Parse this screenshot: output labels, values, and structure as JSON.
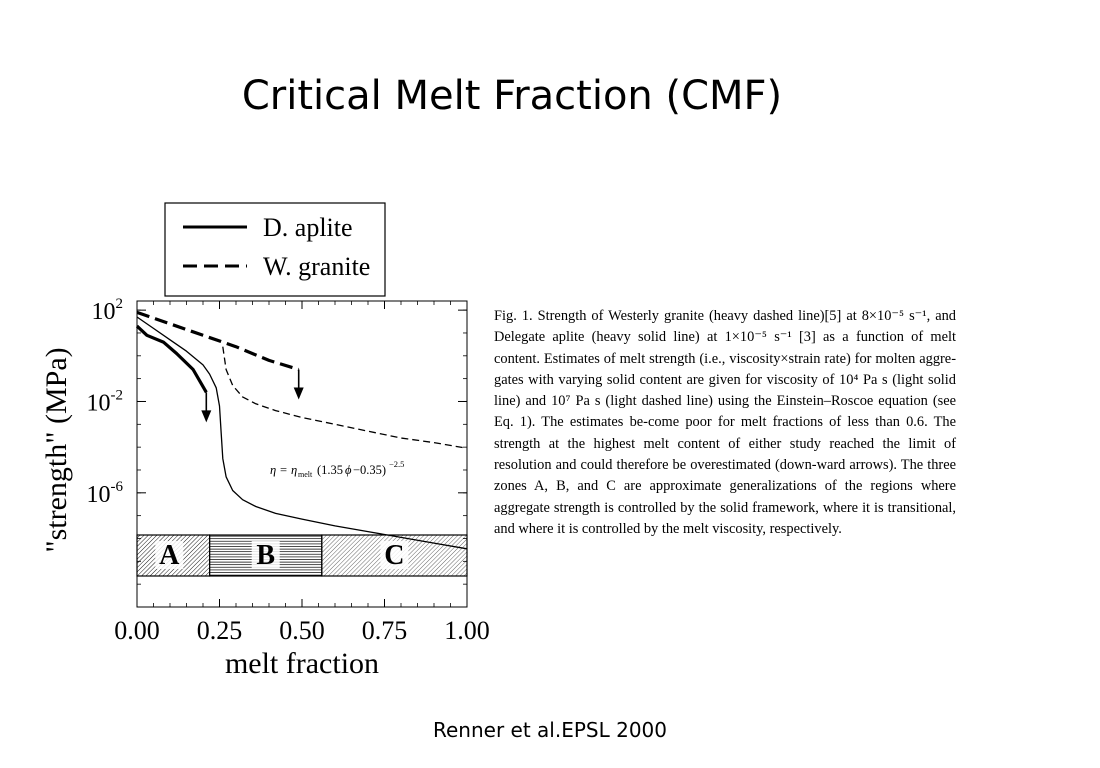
{
  "slide": {
    "title": "Critical Melt Fraction (CMF)",
    "citation": "Renner et al.EPSL 2000"
  },
  "caption": "Fig. 1. Strength of Westerly granite (heavy dashed line)[5] at 8×10⁻⁵ s⁻¹, and Delegate aplite (heavy solid line) at 1×10⁻⁵ s⁻¹ [3] as a function of melt content. Estimates of melt strength (i.e., viscosity×strain rate) for molten aggre-gates with varying solid content are given for viscosity of 10⁴ Pa s (light solid line) and 10⁷ Pa s (light dashed line) using the Einstein–Roscoe equation (see Eq. 1). The estimates be-come poor for melt fractions of less than 0.6. The strength at the highest melt content of either study reached the limit of resolution and could therefore be overestimated (down-ward arrows). The three zones A, B, and C are approximate generalizations of the regions where aggregate strength is controlled by the solid framework, where it is transitional, and where it is controlled by the melt viscosity, respectively.",
  "chart_data": {
    "type": "line",
    "xlabel": "melt fraction",
    "ylabel": "\"strength\" (MPa)",
    "xlim": [
      0,
      1
    ],
    "ylim_log10": [
      -11,
      2.4
    ],
    "y_scale": "log",
    "x_ticks": [
      "0.00",
      "0.25",
      "0.50",
      "0.75",
      "1.00"
    ],
    "y_ticks": [
      {
        "base": "10",
        "exp": "2"
      },
      {
        "base": "10",
        "exp": "-2"
      },
      {
        "base": "10",
        "exp": "-6"
      }
    ],
    "legend": {
      "position": "top-left-outside",
      "entries": [
        "D. aplite",
        "W. granite"
      ]
    },
    "series": [
      {
        "name": "D. aplite",
        "style": "heavy-solid",
        "x": [
          0.0,
          0.03,
          0.08,
          0.12,
          0.17,
          0.21
        ],
        "log10_y": [
          1.3,
          0.9,
          0.6,
          0.1,
          -0.6,
          -1.6
        ],
        "arrow_end": true
      },
      {
        "name": "W. granite",
        "style": "heavy-dashed",
        "x": [
          0.0,
          0.1,
          0.2,
          0.3,
          0.4,
          0.49
        ],
        "log10_y": [
          1.9,
          1.4,
          0.9,
          0.4,
          -0.2,
          -0.6
        ],
        "arrow_end": true
      },
      {
        "style": "light-solid",
        "x": [
          0.0,
          0.05,
          0.1,
          0.15,
          0.2,
          0.22,
          0.24,
          0.25,
          0.255,
          0.26,
          0.27,
          0.29,
          0.32,
          0.36,
          0.42,
          0.5,
          0.6,
          0.7,
          0.8,
          0.9,
          1.0
        ],
        "log10_y": [
          1.7,
          1.2,
          0.7,
          0.2,
          -0.4,
          -0.8,
          -1.4,
          -2.2,
          -3.4,
          -4.5,
          -5.3,
          -5.9,
          -6.3,
          -6.6,
          -6.9,
          -7.15,
          -7.45,
          -7.7,
          -7.95,
          -8.2,
          -8.45
        ]
      },
      {
        "style": "light-dashed",
        "x": [
          0.26,
          0.27,
          0.29,
          0.32,
          0.36,
          0.42,
          0.5,
          0.6,
          0.7,
          0.8,
          0.9,
          1.0
        ],
        "log10_y": [
          0.4,
          -0.6,
          -1.3,
          -1.8,
          -2.1,
          -2.4,
          -2.7,
          -3.0,
          -3.3,
          -3.6,
          -3.8,
          -4.05
        ]
      }
    ],
    "zones": [
      {
        "label": "A",
        "x_start": 0.0,
        "x_end": 0.22
      },
      {
        "label": "B",
        "x_start": 0.22,
        "x_end": 0.56
      },
      {
        "label": "C",
        "x_start": 0.56,
        "x_end": 1.0
      }
    ]
  }
}
